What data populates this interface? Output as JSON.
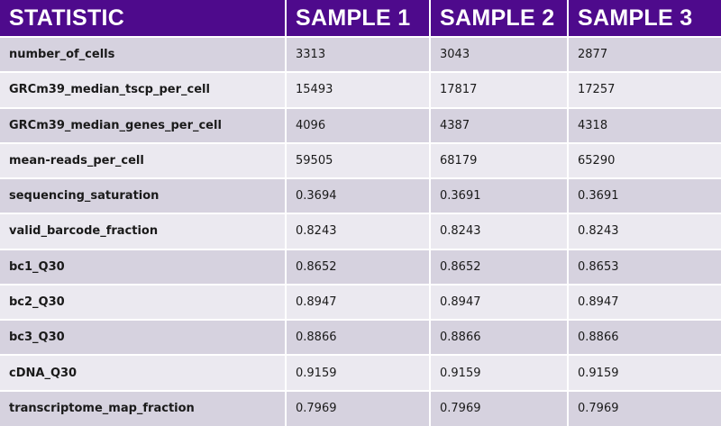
{
  "table": {
    "headers": [
      "STATISTIC",
      "SAMPLE 1",
      "SAMPLE 2",
      "SAMPLE 3"
    ],
    "rows": [
      {
        "stat": "number_of_cells",
        "s1": "3313",
        "s2": "3043",
        "s3": "2877"
      },
      {
        "stat": "GRCm39_median_tscp_per_cell",
        "s1": "15493",
        "s2": "17817",
        "s3": "17257"
      },
      {
        "stat": "GRCm39_median_genes_per_cell",
        "s1": "4096",
        "s2": "4387",
        "s3": "4318"
      },
      {
        "stat": "mean-reads_per_cell",
        "s1": "59505",
        "s2": "68179",
        "s3": "65290"
      },
      {
        "stat": "sequencing_saturation",
        "s1": "0.3694",
        "s2": "0.3691",
        "s3": "0.3691"
      },
      {
        "stat": "valid_barcode_fraction",
        "s1": "0.8243",
        "s2": "0.8243",
        "s3": "0.8243"
      },
      {
        "stat": "bc1_Q30",
        "s1": "0.8652",
        "s2": "0.8652",
        "s3": "0.8653"
      },
      {
        "stat": "bc2_Q30",
        "s1": "0.8947",
        "s2": "0.8947",
        "s3": "0.8947"
      },
      {
        "stat": "bc3_Q30",
        "s1": "0.8866",
        "s2": "0.8866",
        "s3": "0.8866"
      },
      {
        "stat": "cDNA_Q30",
        "s1": "0.9159",
        "s2": "0.9159",
        "s3": "0.9159"
      },
      {
        "stat": "transcriptome_map_fraction",
        "s1": "0.7969",
        "s2": "0.7969",
        "s3": "0.7969"
      }
    ]
  },
  "colors": {
    "header_bg": "#4e0a8c",
    "header_text": "#ffffff",
    "row_odd": "#d6d2df",
    "row_even": "#ebe9f0"
  }
}
